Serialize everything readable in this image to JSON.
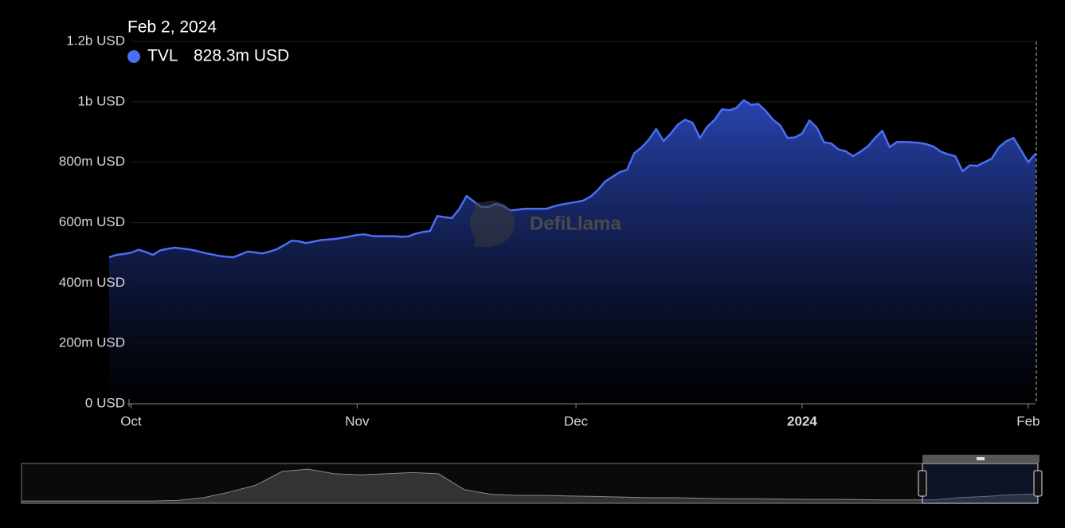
{
  "chart_data": {
    "type": "area",
    "watermark": "DefiLlama",
    "tooltip": {
      "date": "Feb 2, 2024",
      "value_label": "828.3m USD"
    },
    "categories": [
      null,
      null,
      null,
      "Oct",
      null,
      null,
      null,
      null,
      null,
      null,
      null,
      null,
      null,
      null,
      null,
      null,
      null,
      null,
      null,
      null,
      null,
      null,
      null,
      null,
      null,
      null,
      null,
      null,
      null,
      null,
      null,
      null,
      null,
      null,
      "Nov",
      null,
      null,
      null,
      null,
      null,
      null,
      null,
      null,
      null,
      null,
      null,
      null,
      null,
      null,
      null,
      null,
      null,
      null,
      null,
      null,
      null,
      null,
      null,
      null,
      null,
      null,
      null,
      null,
      null,
      "Dec",
      null,
      null,
      null,
      null,
      null,
      null,
      null,
      null,
      null,
      null,
      null,
      null,
      null,
      null,
      null,
      null,
      null,
      null,
      null,
      null,
      null,
      null,
      null,
      null,
      null,
      null,
      null,
      null,
      null,
      null,
      "2024",
      null,
      null,
      null,
      null,
      null,
      null,
      null,
      null,
      null,
      null,
      null,
      null,
      null,
      null,
      null,
      null,
      null,
      null,
      null,
      null,
      null,
      null,
      null,
      null,
      null,
      null,
      null,
      null,
      null,
      null,
      "Feb",
      null
    ],
    "series": [
      {
        "name": "TVL",
        "color": "#4a6ef5",
        "values": [
          485000000,
          493000000,
          496000000,
          500000000,
          510000000,
          503000000,
          493000000,
          508000000,
          513000000,
          517000000,
          514000000,
          511000000,
          506000000,
          500000000,
          495000000,
          490000000,
          487000000,
          485000000,
          494000000,
          504000000,
          501000000,
          498000000,
          504000000,
          512000000,
          525000000,
          540000000,
          538000000,
          532000000,
          537000000,
          542000000,
          544000000,
          546000000,
          550000000,
          554000000,
          559000000,
          561000000,
          556000000,
          555000000,
          555000000,
          555000000,
          553000000,
          554000000,
          563000000,
          569000000,
          572000000,
          622000000,
          618000000,
          615000000,
          645000000,
          688000000,
          670000000,
          652000000,
          652000000,
          662000000,
          655000000,
          640000000,
          643000000,
          646000000,
          646000000,
          646000000,
          646000000,
          654000000,
          660000000,
          664000000,
          668000000,
          673000000,
          686000000,
          708000000,
          736000000,
          752000000,
          767000000,
          775000000,
          830000000,
          849000000,
          875000000,
          910000000,
          870000000,
          895000000,
          925000000,
          941000000,
          930000000,
          880000000,
          918000000,
          940000000,
          975000000,
          972000000,
          980000000,
          1005000000,
          990000000,
          993000000,
          970000000,
          941000000,
          922000000,
          880000000,
          882000000,
          895000000,
          938000000,
          915000000,
          866000000,
          862000000,
          842000000,
          836000000,
          820000000,
          835000000,
          852000000,
          880000000,
          904000000,
          850000000,
          867000000,
          867000000,
          866000000,
          864000000,
          860000000,
          852000000,
          835000000,
          826000000,
          820000000,
          770000000,
          790000000,
          788000000,
          800000000,
          812000000,
          850000000,
          870000000,
          880000000,
          840000000,
          800000000,
          828300000
        ]
      }
    ],
    "ylim": [
      0,
      1200000000
    ],
    "yticks": [
      {
        "value": 0,
        "label": "0 USD"
      },
      {
        "value": 200000000,
        "label": "200m USD"
      },
      {
        "value": 400000000,
        "label": "400m USD"
      },
      {
        "value": 600000000,
        "label": "600m USD"
      },
      {
        "value": 800000000,
        "label": "800m USD"
      },
      {
        "value": 1000000000,
        "label": "1b USD"
      },
      {
        "value": 1200000000,
        "label": "1.2b USD"
      }
    ],
    "grid": true,
    "navigator": {
      "ylim": [
        0,
        3500000000
      ],
      "values": [
        200000000,
        200000000,
        200000000,
        200000000,
        200000000,
        200000000,
        250000000,
        500000000,
        1000000000,
        1600000000,
        2800000000,
        3000000000,
        2600000000,
        2500000000,
        2600000000,
        2700000000,
        2600000000,
        1200000000,
        800000000,
        700000000,
        700000000,
        650000000,
        600000000,
        550000000,
        500000000,
        500000000,
        450000000,
        400000000,
        400000000,
        380000000,
        350000000,
        350000000,
        330000000,
        300000000,
        300000000,
        300000000,
        500000000,
        600000000,
        750000000,
        820000000
      ]
    }
  }
}
